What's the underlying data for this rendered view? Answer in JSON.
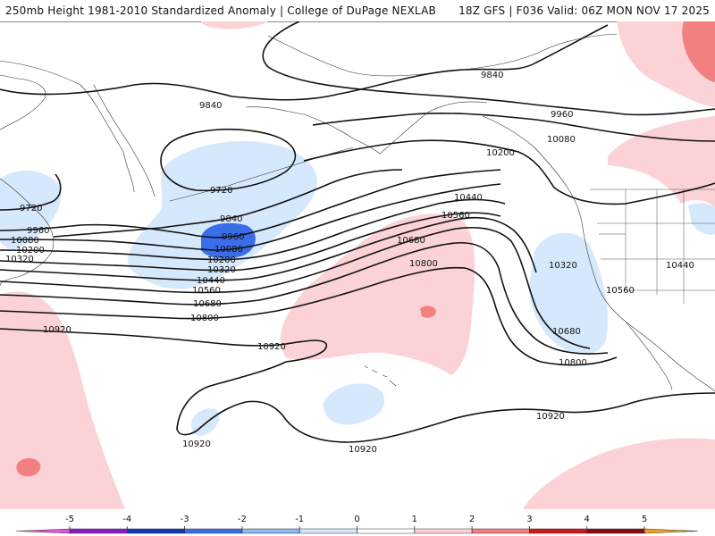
{
  "header": {
    "title_left": "250mb Height 1981-2010 Standardized Anomaly | College of DuPage NEXLAB",
    "title_right": "18Z GFS | F036 Valid: 06Z MON NOV 17 2025"
  },
  "colorbar": {
    "ticks": [
      "-5",
      "-4",
      "-3",
      "-2",
      "-1",
      "0",
      "1",
      "2",
      "3",
      "4",
      "5"
    ],
    "colors": [
      "#e05ad8",
      "#8a1cc6",
      "#1038b8",
      "#3a6ee8",
      "#8db8f2",
      "#d8e8fb",
      "#ffffff",
      "#fbd2d6",
      "#f28080",
      "#d01818",
      "#8a0c0c",
      "#f2a020"
    ]
  },
  "contour_labels": [
    {
      "text": "9840"
    },
    {
      "text": "9840"
    },
    {
      "text": "9960"
    },
    {
      "text": "10080"
    },
    {
      "text": "9720"
    },
    {
      "text": "9720"
    },
    {
      "text": "9960"
    },
    {
      "text": "10080"
    },
    {
      "text": "10200"
    },
    {
      "text": "10320"
    },
    {
      "text": "9840"
    },
    {
      "text": "9960"
    },
    {
      "text": "10080"
    },
    {
      "text": "10200"
    },
    {
      "text": "10320"
    },
    {
      "text": "10440"
    },
    {
      "text": "10560"
    },
    {
      "text": "10680"
    },
    {
      "text": "10800"
    },
    {
      "text": "10200"
    },
    {
      "text": "10440"
    },
    {
      "text": "10560"
    },
    {
      "text": "10680"
    },
    {
      "text": "10800"
    },
    {
      "text": "10320"
    },
    {
      "text": "10560"
    },
    {
      "text": "10440"
    },
    {
      "text": "10680"
    },
    {
      "text": "10800"
    },
    {
      "text": "10920"
    },
    {
      "text": "10920"
    },
    {
      "text": "10920"
    },
    {
      "text": "10920"
    },
    {
      "text": "10920"
    }
  ]
}
